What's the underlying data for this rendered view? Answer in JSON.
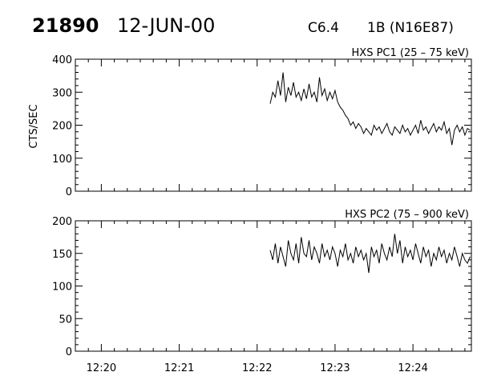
{
  "header": {
    "event_id": "21890",
    "date": "12-JUN-00",
    "goes_class": "C6.4",
    "optical": "1B (N16E87)"
  },
  "colors": {
    "foreground": "#000000",
    "background": "#ffffff"
  },
  "chart_data": [
    {
      "type": "line",
      "title": "HXS PC1 (25 – 75 keV)",
      "ylabel": "CTS/SEC",
      "xlabel": "",
      "xlim": [
        "12:19:40",
        "12:24:45"
      ],
      "ylim": [
        0,
        400
      ],
      "yticks": [
        0,
        100,
        200,
        300,
        400
      ],
      "xticks": [
        "12:20",
        "12:21",
        "12:22",
        "12:23",
        "12:24"
      ],
      "series": [
        {
          "values": [
            [
              "12:22:10",
              265
            ],
            [
              "12:22:12",
              300
            ],
            [
              "12:22:14",
              285
            ],
            [
              "12:22:16",
              335
            ],
            [
              "12:22:18",
              290
            ],
            [
              "12:22:20",
              360
            ],
            [
              "12:22:22",
              270
            ],
            [
              "12:22:24",
              315
            ],
            [
              "12:22:26",
              290
            ],
            [
              "12:22:28",
              330
            ],
            [
              "12:22:30",
              285
            ],
            [
              "12:22:32",
              300
            ],
            [
              "12:22:34",
              275
            ],
            [
              "12:22:36",
              310
            ],
            [
              "12:22:38",
              280
            ],
            [
              "12:22:40",
              325
            ],
            [
              "12:22:42",
              285
            ],
            [
              "12:22:44",
              300
            ],
            [
              "12:22:46",
              270
            ],
            [
              "12:22:48",
              345
            ],
            [
              "12:22:50",
              290
            ],
            [
              "12:22:52",
              310
            ],
            [
              "12:22:54",
              275
            ],
            [
              "12:22:56",
              300
            ],
            [
              "12:22:58",
              280
            ],
            [
              "12:23:00",
              305
            ],
            [
              "12:23:02",
              270
            ],
            [
              "12:23:04",
              255
            ],
            [
              "12:23:06",
              245
            ],
            [
              "12:23:08",
              230
            ],
            [
              "12:23:10",
              220
            ],
            [
              "12:23:12",
              200
            ],
            [
              "12:23:14",
              210
            ],
            [
              "12:23:16",
              190
            ],
            [
              "12:23:18",
              205
            ],
            [
              "12:23:20",
              195
            ],
            [
              "12:23:22",
              175
            ],
            [
              "12:23:24",
              190
            ],
            [
              "12:23:26",
              180
            ],
            [
              "12:23:28",
              170
            ],
            [
              "12:23:30",
              200
            ],
            [
              "12:23:32",
              185
            ],
            [
              "12:23:34",
              195
            ],
            [
              "12:23:36",
              175
            ],
            [
              "12:23:38",
              190
            ],
            [
              "12:23:40",
              205
            ],
            [
              "12:23:42",
              180
            ],
            [
              "12:23:44",
              170
            ],
            [
              "12:23:46",
              195
            ],
            [
              "12:23:48",
              185
            ],
            [
              "12:23:50",
              175
            ],
            [
              "12:23:52",
              200
            ],
            [
              "12:23:54",
              180
            ],
            [
              "12:23:56",
              190
            ],
            [
              "12:23:58",
              170
            ],
            [
              "12:24:00",
              185
            ],
            [
              "12:24:02",
              200
            ],
            [
              "12:24:04",
              175
            ],
            [
              "12:24:06",
              215
            ],
            [
              "12:24:08",
              185
            ],
            [
              "12:24:10",
              195
            ],
            [
              "12:24:12",
              175
            ],
            [
              "12:24:14",
              190
            ],
            [
              "12:24:16",
              205
            ],
            [
              "12:24:18",
              180
            ],
            [
              "12:24:20",
              195
            ],
            [
              "12:24:22",
              185
            ],
            [
              "12:24:24",
              210
            ],
            [
              "12:24:26",
              175
            ],
            [
              "12:24:28",
              190
            ],
            [
              "12:24:30",
              140
            ],
            [
              "12:24:32",
              185
            ],
            [
              "12:24:34",
              200
            ],
            [
              "12:24:36",
              180
            ],
            [
              "12:24:38",
              195
            ],
            [
              "12:24:40",
              170
            ],
            [
              "12:24:42",
              190
            ],
            [
              "12:24:44",
              185
            ]
          ]
        }
      ]
    },
    {
      "type": "line",
      "title": "HXS PC2 (75 – 900 keV)",
      "ylabel": "",
      "xlabel": "",
      "xlim": [
        "12:19:40",
        "12:24:45"
      ],
      "ylim": [
        0,
        200
      ],
      "yticks": [
        0,
        50,
        100,
        150,
        200
      ],
      "xticks": [
        "12:20",
        "12:21",
        "12:22",
        "12:23",
        "12:24"
      ],
      "series": [
        {
          "values": [
            [
              "12:22:10",
              155
            ],
            [
              "12:22:12",
              140
            ],
            [
              "12:22:14",
              165
            ],
            [
              "12:22:16",
              135
            ],
            [
              "12:22:18",
              160
            ],
            [
              "12:22:20",
              145
            ],
            [
              "12:22:22",
              130
            ],
            [
              "12:22:24",
              170
            ],
            [
              "12:22:26",
              150
            ],
            [
              "12:22:28",
              140
            ],
            [
              "12:22:30",
              165
            ],
            [
              "12:22:32",
              135
            ],
            [
              "12:22:34",
              175
            ],
            [
              "12:22:36",
              150
            ],
            [
              "12:22:38",
              145
            ],
            [
              "12:22:40",
              170
            ],
            [
              "12:22:42",
              140
            ],
            [
              "12:22:44",
              160
            ],
            [
              "12:22:46",
              150
            ],
            [
              "12:22:48",
              135
            ],
            [
              "12:22:50",
              165
            ],
            [
              "12:22:52",
              145
            ],
            [
              "12:22:54",
              155
            ],
            [
              "12:22:56",
              140
            ],
            [
              "12:22:58",
              160
            ],
            [
              "12:23:00",
              150
            ],
            [
              "12:23:02",
              130
            ],
            [
              "12:23:04",
              155
            ],
            [
              "12:23:06",
              145
            ],
            [
              "12:23:08",
              165
            ],
            [
              "12:23:10",
              140
            ],
            [
              "12:23:12",
              150
            ],
            [
              "12:23:14",
              135
            ],
            [
              "12:23:16",
              160
            ],
            [
              "12:23:18",
              145
            ],
            [
              "12:23:20",
              155
            ],
            [
              "12:23:22",
              140
            ],
            [
              "12:23:24",
              150
            ],
            [
              "12:23:26",
              120
            ],
            [
              "12:23:28",
              160
            ],
            [
              "12:23:30",
              145
            ],
            [
              "12:23:32",
              155
            ],
            [
              "12:23:34",
              135
            ],
            [
              "12:23:36",
              165
            ],
            [
              "12:23:38",
              150
            ],
            [
              "12:23:40",
              140
            ],
            [
              "12:23:42",
              160
            ],
            [
              "12:23:44",
              145
            ],
            [
              "12:23:46",
              180
            ],
            [
              "12:23:48",
              150
            ],
            [
              "12:23:50",
              170
            ],
            [
              "12:23:52",
              135
            ],
            [
              "12:23:54",
              160
            ],
            [
              "12:23:56",
              145
            ],
            [
              "12:23:58",
              155
            ],
            [
              "12:24:00",
              140
            ],
            [
              "12:24:02",
              165
            ],
            [
              "12:24:04",
              150
            ],
            [
              "12:24:06",
              135
            ],
            [
              "12:24:08",
              160
            ],
            [
              "12:24:10",
              145
            ],
            [
              "12:24:12",
              155
            ],
            [
              "12:24:14",
              130
            ],
            [
              "12:24:16",
              150
            ],
            [
              "12:24:18",
              140
            ],
            [
              "12:24:20",
              160
            ],
            [
              "12:24:22",
              145
            ],
            [
              "12:24:24",
              155
            ],
            [
              "12:24:26",
              135
            ],
            [
              "12:24:28",
              150
            ],
            [
              "12:24:30",
              140
            ],
            [
              "12:24:32",
              160
            ],
            [
              "12:24:34",
              145
            ],
            [
              "12:24:36",
              130
            ],
            [
              "12:24:38",
              150
            ],
            [
              "12:24:40",
              140
            ],
            [
              "12:24:42",
              135
            ],
            [
              "12:24:44",
              145
            ]
          ]
        }
      ]
    }
  ]
}
